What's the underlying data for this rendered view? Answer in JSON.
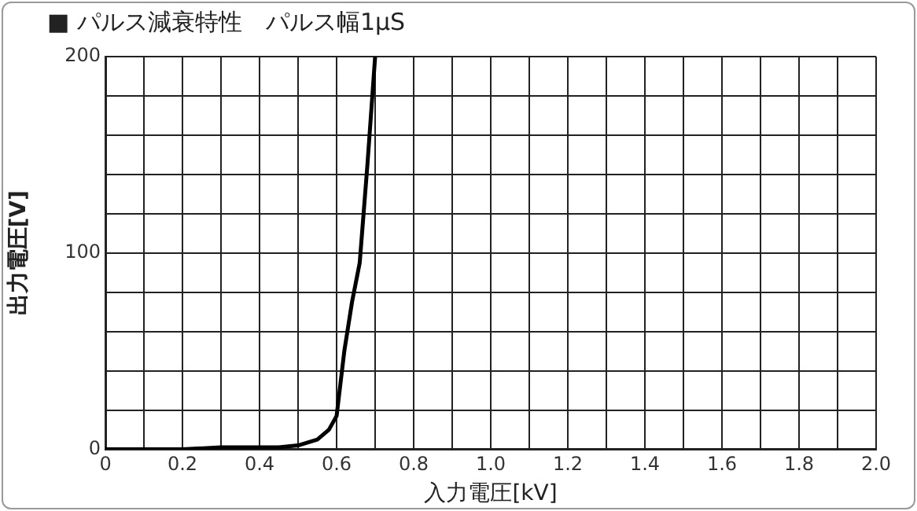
{
  "chart_data": {
    "type": "line",
    "title": "■ パルス減衰特性　パルス幅1μS",
    "xlabel": "入力電圧[kV]",
    "ylabel": "出力電圧[V]",
    "series": [
      {
        "color": "#000000",
        "x": [
          0,
          0.1,
          0.2,
          0.3,
          0.4,
          0.45,
          0.5,
          0.55,
          0.58,
          0.6,
          0.62,
          0.64,
          0.66,
          0.68,
          0.7
        ],
        "values": [
          0,
          0,
          0,
          1,
          1,
          1,
          2,
          5,
          10,
          17,
          50,
          75,
          95,
          145,
          200
        ]
      }
    ],
    "xlim": [
      0,
      2.0
    ],
    "xticks": [
      0,
      {
        "value": 0.1,
        "label": null
      },
      0.2,
      {
        "value": 0.3,
        "label": null
      },
      0.4,
      {
        "value": 0.5,
        "label": null
      },
      0.6,
      {
        "value": 0.7,
        "label": null
      },
      0.8,
      {
        "value": 0.9,
        "label": null
      },
      {
        "value": 1,
        "label": "1.0"
      },
      {
        "value": 1.1,
        "label": null
      },
      1.2,
      {
        "value": 1.3,
        "label": null
      },
      1.4,
      {
        "value": 1.5,
        "label": null
      },
      1.6,
      {
        "value": 1.7,
        "label": null
      },
      1.8,
      {
        "value": 1.9,
        "label": null
      },
      {
        "value": 2,
        "label": "2.0"
      }
    ],
    "ylim": [
      0,
      200
    ],
    "yticks": [
      0,
      {
        "value": 20,
        "label": null
      },
      {
        "value": 40,
        "label": null
      },
      {
        "value": 60,
        "label": null
      },
      {
        "value": 80,
        "label": null
      },
      100,
      {
        "value": 120,
        "label": null
      },
      {
        "value": 140,
        "label": null
      },
      {
        "value": 160,
        "label": null
      },
      {
        "value": 180,
        "label": null
      },
      200
    ],
    "grid": true,
    "legend": false,
    "marker": "none",
    "line_style": "solid"
  }
}
